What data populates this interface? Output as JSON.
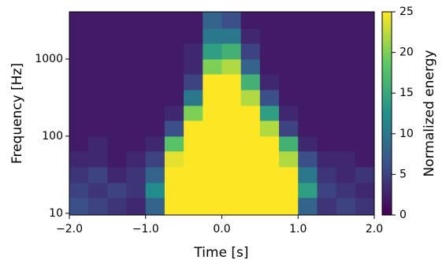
{
  "chart_data": {
    "type": "heatmap",
    "xlabel": "Time [s]",
    "ylabel": "Frequency [Hz]",
    "colorbar_label": "Normalized energy",
    "colormap": "viridis",
    "xlim": [
      -2.0,
      2.0
    ],
    "xticks": [
      {
        "value": -2.0,
        "label": "−2.0"
      },
      {
        "value": -1.0,
        "label": "−1.0"
      },
      {
        "value": 0.0,
        "label": "0.0"
      },
      {
        "value": 1.0,
        "label": "1.0"
      },
      {
        "value": 2.0,
        "label": "2.0"
      }
    ],
    "ylim": [
      9.5,
      4096
    ],
    "yscale": "log",
    "yticks": [
      10,
      100,
      1000
    ],
    "zlim": [
      0,
      25
    ],
    "zticks": [
      0,
      5,
      10,
      15,
      20,
      25
    ],
    "xbins": [
      -2.0,
      -1.75,
      -1.5,
      -1.25,
      -1.0,
      -0.75,
      -0.5,
      -0.25,
      0.0,
      0.25,
      0.5,
      0.75,
      1.0,
      1.25,
      1.5,
      1.75,
      2.0
    ],
    "ybins": [
      9.5,
      16,
      25,
      40,
      64,
      100,
      160,
      250,
      400,
      640,
      1000,
      1600,
      2500,
      4096
    ],
    "z": [
      [
        6,
        5,
        4,
        3,
        8,
        25,
        25,
        25,
        25,
        25,
        25,
        25,
        8,
        4,
        5,
        4
      ],
      [
        5,
        4,
        5,
        4,
        12,
        25,
        25,
        25,
        25,
        25,
        25,
        25,
        14,
        5,
        4,
        3
      ],
      [
        4,
        5,
        3,
        4,
        8,
        25,
        25,
        25,
        25,
        25,
        25,
        25,
        10,
        4,
        3,
        4
      ],
      [
        3,
        3,
        2,
        3,
        5,
        24,
        25,
        25,
        25,
        25,
        25,
        22,
        6,
        3,
        3,
        2
      ],
      [
        2,
        3,
        2,
        2,
        3,
        18,
        25,
        25,
        25,
        25,
        25,
        16,
        3,
        2,
        2,
        2
      ],
      [
        2,
        2,
        2,
        2,
        2,
        6,
        25,
        25,
        25,
        25,
        22,
        5,
        2,
        2,
        2,
        2
      ],
      [
        2,
        2,
        2,
        2,
        2,
        3,
        20,
        25,
        25,
        25,
        14,
        3,
        2,
        2,
        2,
        2
      ],
      [
        2,
        2,
        2,
        2,
        2,
        2,
        10,
        25,
        25,
        22,
        6,
        2,
        2,
        2,
        2,
        2
      ],
      [
        2,
        2,
        2,
        2,
        2,
        2,
        5,
        25,
        25,
        16,
        3,
        2,
        2,
        2,
        2,
        2
      ],
      [
        2,
        2,
        2,
        2,
        2,
        2,
        3,
        20,
        22,
        8,
        2,
        2,
        2,
        2,
        2,
        2
      ],
      [
        2,
        2,
        2,
        2,
        2,
        2,
        3,
        14,
        16,
        5,
        2,
        2,
        2,
        2,
        2,
        2
      ],
      [
        2,
        2,
        2,
        2,
        2,
        2,
        2,
        10,
        10,
        3,
        2,
        2,
        2,
        2,
        2,
        2
      ],
      [
        2,
        2,
        2,
        2,
        2,
        2,
        2,
        8,
        6,
        2,
        2,
        2,
        2,
        2,
        2,
        2
      ]
    ]
  }
}
